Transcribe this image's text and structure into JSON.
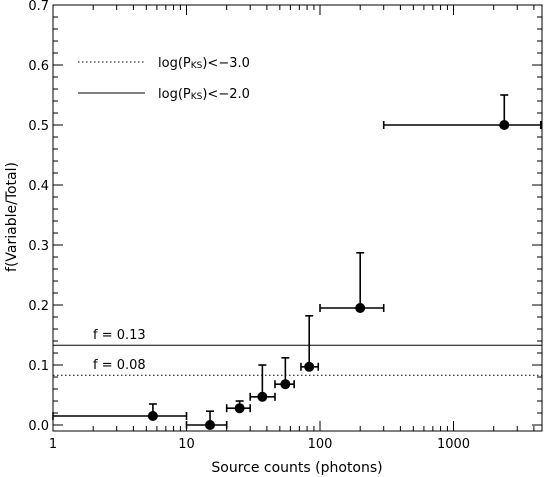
{
  "chart_data": {
    "type": "scatter",
    "xlabel": "Source counts (photons)",
    "ylabel": "f(Variable/Total)",
    "xscale": "log",
    "xlim": [
      1,
      4600
    ],
    "ylim": [
      -0.01,
      0.7
    ],
    "xticks": [
      1,
      10,
      100,
      1000
    ],
    "xtick_labels": [
      "1",
      "10",
      "100",
      "1000"
    ],
    "yticks": [
      0.0,
      0.1,
      0.2,
      0.3,
      0.4,
      0.5,
      0.6,
      0.7
    ],
    "ytick_labels": [
      "0.0",
      "0.1",
      "0.2",
      "0.3",
      "0.4",
      "0.5",
      "0.6",
      "0.7"
    ],
    "grid": false,
    "legend_position": "top-left",
    "legend": [
      {
        "label": "log(P",
        "sub": "KS",
        "suffix": ")<−3.0",
        "style": "dotted"
      },
      {
        "label": "log(P",
        "sub": "KS",
        "suffix": ")<−2.0",
        "style": "solid"
      }
    ],
    "reference_lines": [
      {
        "label": "f = 0.13",
        "y": 0.133,
        "style": "solid"
      },
      {
        "label": "f = 0.08",
        "y": 0.083,
        "style": "dotted"
      }
    ],
    "series": [
      {
        "points": [
          {
            "x": 5.6,
            "y": 0.015,
            "xlo": 1,
            "xhi": 10,
            "yerr_hi": 0.035
          },
          {
            "x": 15,
            "y": 0.0,
            "xlo": 10,
            "xhi": 20,
            "yerr_hi": 0.023
          },
          {
            "x": 25,
            "y": 0.028,
            "xlo": 20,
            "xhi": 30,
            "yerr_hi": 0.04
          },
          {
            "x": 37,
            "y": 0.047,
            "xlo": 30,
            "xhi": 46,
            "yerr_hi": 0.1
          },
          {
            "x": 55,
            "y": 0.068,
            "xlo": 46,
            "xhi": 64,
            "yerr_hi": 0.112
          },
          {
            "x": 83,
            "y": 0.097,
            "xlo": 72,
            "xhi": 97,
            "yerr_hi": 0.182
          },
          {
            "x": 200,
            "y": 0.195,
            "xlo": 100,
            "xhi": 300,
            "yerr_hi": 0.287
          },
          {
            "x": 2400,
            "y": 0.5,
            "xlo": 300,
            "xhi": 4500,
            "yerr_hi": 0.55
          }
        ]
      }
    ]
  }
}
